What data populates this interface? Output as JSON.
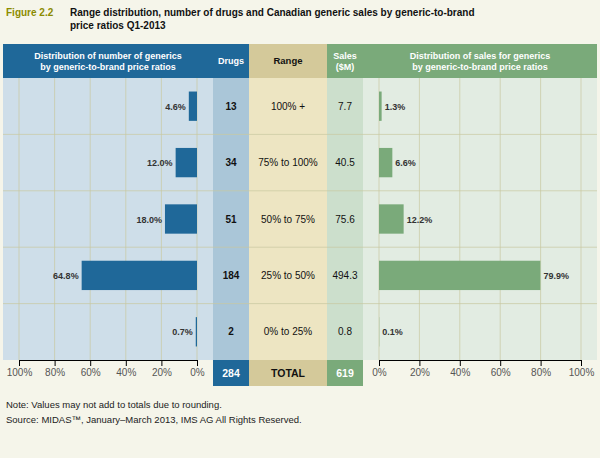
{
  "title_label": "Figure 2.2",
  "title": "Range distribution, number of drugs and Canadian generic sales by generic-to-brand\nprice ratios Q1-2013",
  "annotations": [
    "Note: Values may not add to totals due to rounding.",
    "Source: MIDAS™, January–March 2013, IMS AG All Rights Reserved."
  ],
  "chart_data": [
    {
      "type": "bar",
      "orientation": "horizontal",
      "title": "Distribution of number of generics\nby generic-to-brand price ratios",
      "categories": [
        "100% +",
        "75% to 100%",
        "50% to 75%",
        "25% to 50%",
        "0% to 25%"
      ],
      "values": [
        4.6,
        12.0,
        18.0,
        64.8,
        0.7
      ],
      "value_labels": [
        "4.6%",
        "12.0%",
        "18.0%",
        "64.8%",
        "0.7%"
      ],
      "color": "#1f6899",
      "xlim": [
        100,
        0
      ],
      "xticks": [
        {
          "value": 100,
          "label": "100%"
        },
        {
          "value": 80,
          "label": "80%"
        },
        {
          "value": 60,
          "label": "60%"
        },
        {
          "value": 40,
          "label": "40%"
        },
        {
          "value": 20,
          "label": "20%"
        },
        {
          "value": 0,
          "label": "0%"
        }
      ],
      "grid": true,
      "data_labels": true,
      "tick_labels": "x"
    },
    {
      "type": "table",
      "categories": [
        "100% +",
        "75% to 100%",
        "50% to 75%",
        "25% to 50%",
        "0% to 25%"
      ],
      "category_label": "Range",
      "series": [
        {
          "name": "Drugs",
          "values": [
            13,
            34,
            51,
            184,
            2
          ],
          "total": 284,
          "color": "#1f6899"
        },
        {
          "name": "Sales\n($M)",
          "values": [
            7.7,
            40.5,
            75.6,
            494.3,
            0.8
          ],
          "total": 619,
          "color": "#7aaa7a"
        }
      ],
      "total_label": "TOTAL"
    },
    {
      "type": "bar",
      "orientation": "horizontal",
      "title": "Distribution of sales for generics\nby generic-to-brand price ratios",
      "categories": [
        "100% +",
        "75% to 100%",
        "50% to 75%",
        "25% to 50%",
        "0% to 25%"
      ],
      "values": [
        1.3,
        6.6,
        12.2,
        79.9,
        0.1
      ],
      "value_labels": [
        "1.3%",
        "6.6%",
        "12.2%",
        "79.9%",
        "0.1%"
      ],
      "color": "#7aaa7a",
      "xlim": [
        0,
        100
      ],
      "xticks": [
        {
          "value": 0,
          "label": "0%"
        },
        {
          "value": 20,
          "label": "20%"
        },
        {
          "value": 40,
          "label": "40%"
        },
        {
          "value": 60,
          "label": "60%"
        },
        {
          "value": 80,
          "label": "80%"
        },
        {
          "value": 100,
          "label": "100%"
        }
      ],
      "grid": true,
      "data_labels": true,
      "tick_labels": "x"
    }
  ]
}
